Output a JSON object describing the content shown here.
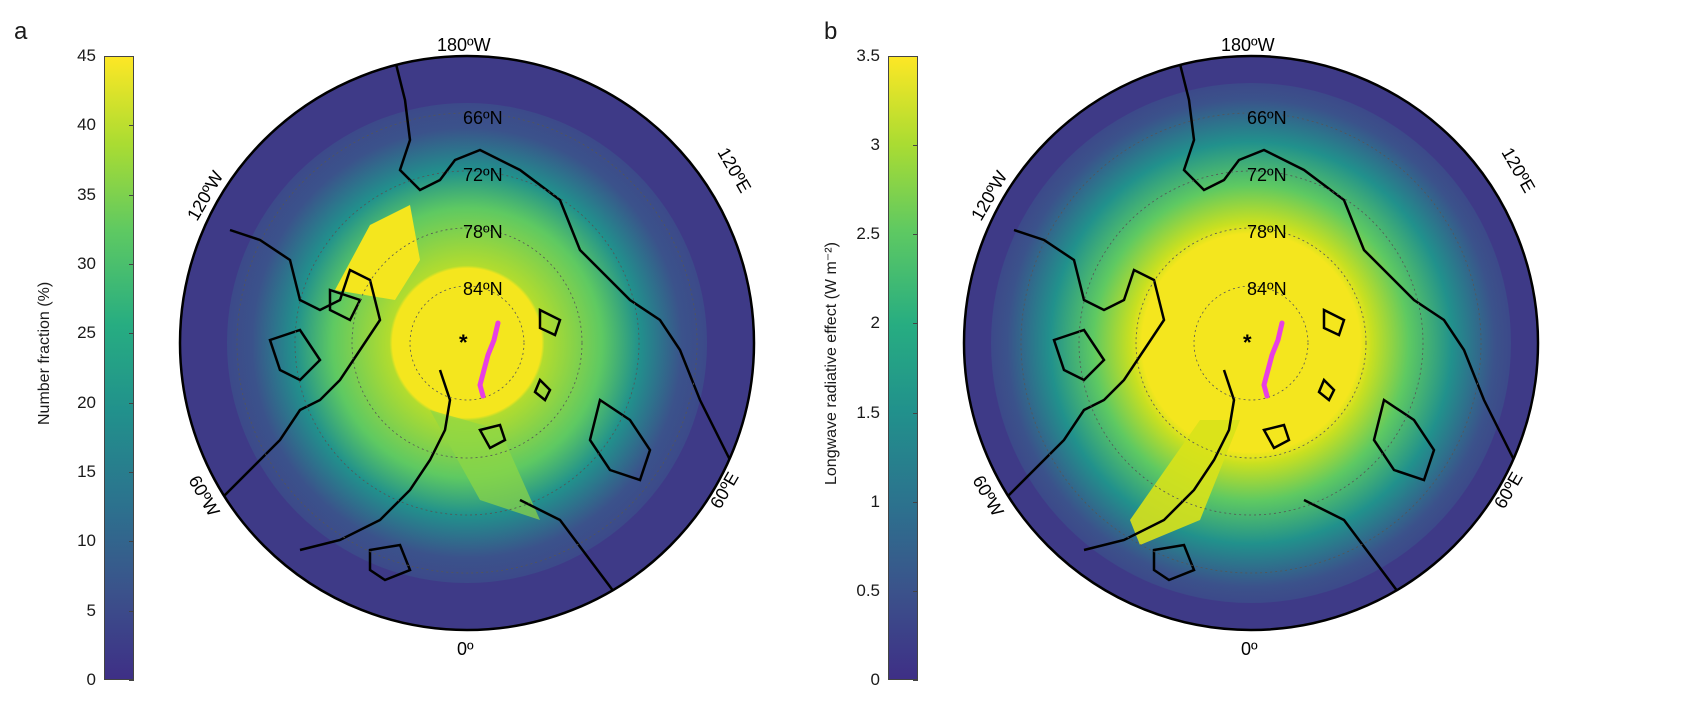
{
  "panels": [
    {
      "letter": "a",
      "colorbar": {
        "label": "Number fraction (%)",
        "ticks": [
          "0",
          "5",
          "10",
          "15",
          "20",
          "25",
          "30",
          "35",
          "40",
          "45"
        ]
      },
      "lon_labels": {
        "top": "180ºW",
        "bottom": "0º",
        "upper_left": "120ºW",
        "upper_right": "120ºE",
        "lower_left": "60ºW",
        "lower_right": "60ºE"
      },
      "lat_labels": [
        "66ºN",
        "72ºN",
        "78ºN",
        "84ºN"
      ]
    },
    {
      "letter": "b",
      "colorbar": {
        "label": "Longwave radiative effect (W m⁻²)",
        "ticks": [
          "0",
          "0.5",
          "1",
          "1.5",
          "2",
          "2.5",
          "3",
          "3.5"
        ]
      },
      "lon_labels": {
        "top": "180ºW",
        "bottom": "0º",
        "upper_left": "120ºW",
        "upper_right": "120ºE",
        "lower_left": "60ºW",
        "lower_right": "60ºE"
      },
      "lat_labels": [
        "66ºN",
        "72ºN",
        "78ºN",
        "84ºN"
      ]
    }
  ],
  "colors": {
    "low": "#3b3a85",
    "mid": "#21918c",
    "high": "#f4e61e",
    "track": "#e83fe3",
    "coast": "#000000"
  }
}
